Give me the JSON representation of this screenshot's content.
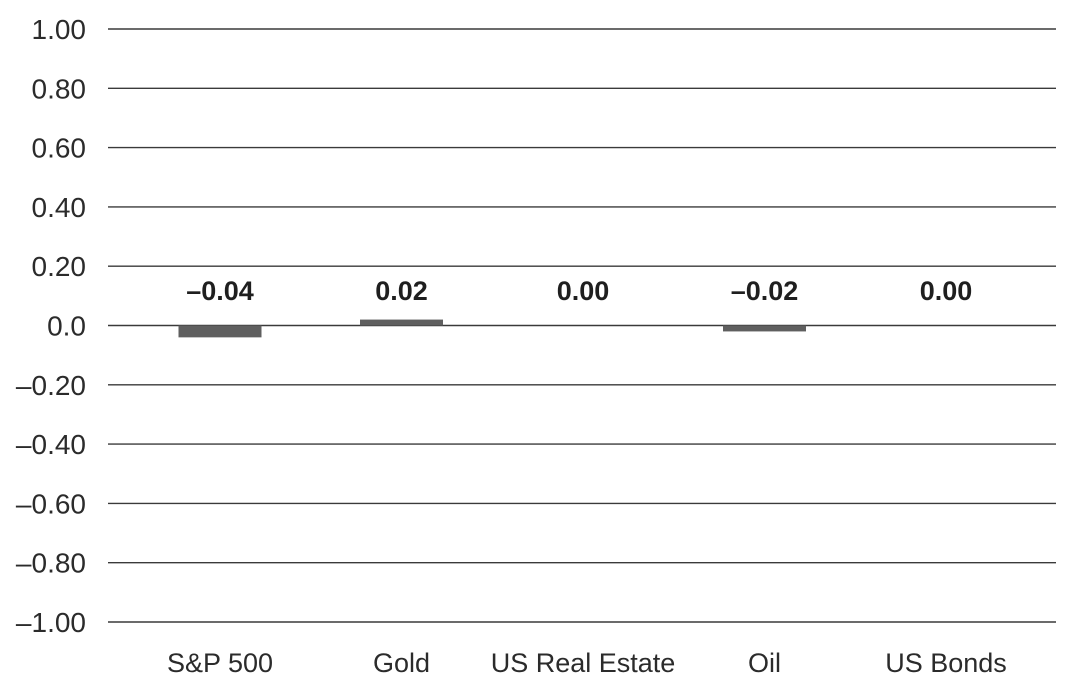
{
  "chart_data": {
    "type": "bar",
    "categories": [
      "S&P 500",
      "Gold",
      "US Real Estate",
      "Oil",
      "US Bonds"
    ],
    "values": [
      -0.04,
      0.02,
      0.0,
      -0.02,
      0.0
    ],
    "data_labels": [
      "–0.04",
      "0.02",
      "0.00",
      "–0.02",
      "0.00"
    ],
    "y_ticks": [
      1.0,
      0.8,
      0.6,
      0.4,
      0.2,
      0.0,
      -0.2,
      -0.4,
      -0.6,
      -0.8,
      -1.0
    ],
    "y_tick_labels": [
      "1.00",
      "0.80",
      "0.60",
      "0.40",
      "0.20",
      "0.0",
      "–0.20",
      "–0.40",
      "–0.60",
      "–0.80",
      "–1.00"
    ],
    "ylim": [
      -1.0,
      1.0
    ],
    "title": "",
    "xlabel": "",
    "ylabel": "",
    "grid": true,
    "legend": "none",
    "bar_color": "#5f5f5f",
    "grid_color": "#3a3a3a",
    "text_color": "#2b2b2b"
  }
}
